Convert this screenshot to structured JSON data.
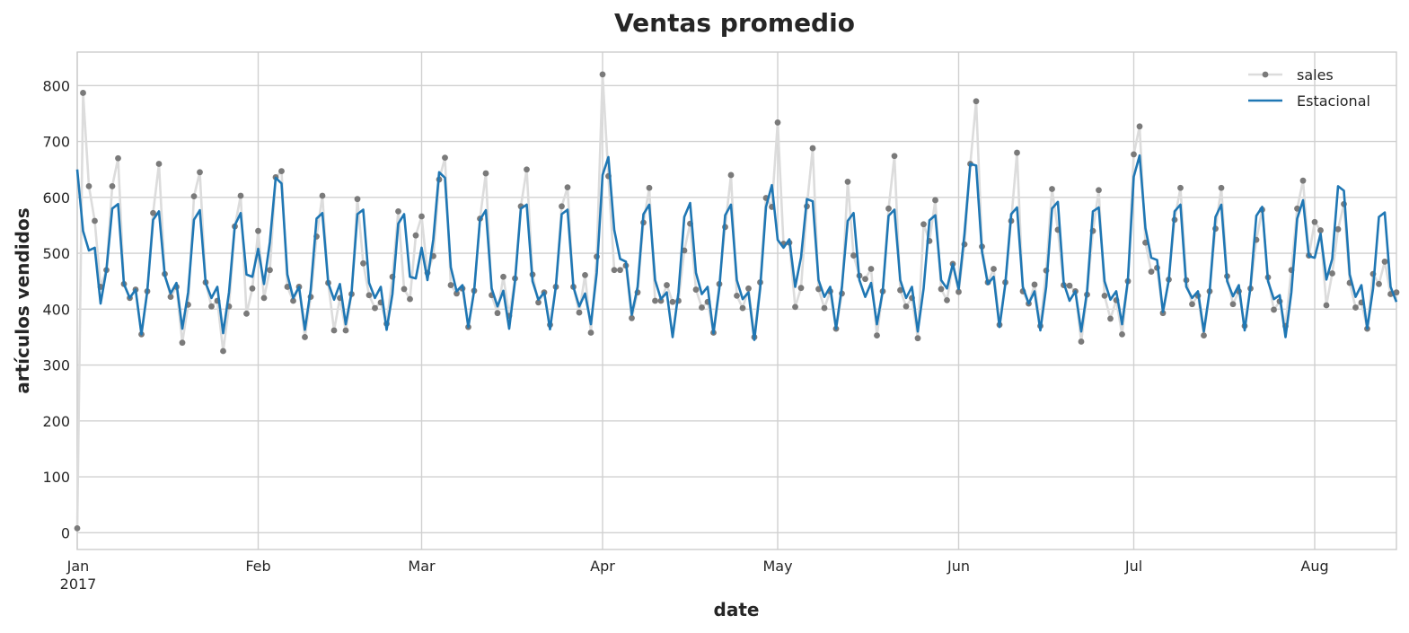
{
  "chart_data": {
    "type": "line",
    "title": "Ventas promedio",
    "xlabel": "date",
    "ylabel": "artículos vendidos",
    "x_start": "2017-01-01",
    "x_end": "2017-08-15",
    "ylim": [
      -30,
      860
    ],
    "yticks": [
      0,
      100,
      200,
      300,
      400,
      500,
      600,
      700,
      800
    ],
    "xticks": [
      {
        "date": "2017-01-01",
        "label": "Jan",
        "sublabel": "2017"
      },
      {
        "date": "2017-02-01",
        "label": "Feb"
      },
      {
        "date": "2017-03-01",
        "label": "Mar"
      },
      {
        "date": "2017-04-01",
        "label": "Apr"
      },
      {
        "date": "2017-05-01",
        "label": "May"
      },
      {
        "date": "2017-06-01",
        "label": "Jun"
      },
      {
        "date": "2017-07-01",
        "label": "Jul"
      },
      {
        "date": "2017-08-01",
        "label": "Aug"
      }
    ],
    "grid": true,
    "legend_position": "top-right",
    "colors": {
      "sales_line": "#dcdcdc",
      "sales_marker": "#7a7a7a",
      "seasonal": "#1f77b4"
    },
    "series": [
      {
        "name": "sales",
        "style": "line-with-markers",
        "values": [
          8,
          787,
          620,
          558,
          440,
          470,
          620,
          670,
          445,
          420,
          435,
          355,
          432,
          572,
          660,
          463,
          422,
          440,
          340,
          408,
          602,
          645,
          448,
          405,
          415,
          325,
          405,
          548,
          603,
          392,
          437,
          540,
          420,
          470,
          636,
          647,
          440,
          415,
          440,
          350,
          422,
          530,
          603,
          447,
          362,
          420,
          362,
          427,
          597,
          482,
          425,
          402,
          412,
          374,
          458,
          575,
          436,
          418,
          532,
          566,
          465,
          495,
          632,
          671,
          443,
          428,
          437,
          368,
          433,
          562,
          643,
          425,
          393,
          458,
          388,
          455,
          584,
          650,
          462,
          412,
          430,
          372,
          440,
          584,
          618,
          440,
          394,
          461,
          358,
          494,
          820,
          638,
          470,
          470,
          478,
          384,
          430,
          555,
          617,
          415,
          415,
          443,
          413,
          415,
          505,
          553,
          435,
          403,
          413,
          358,
          445,
          547,
          640,
          424,
          402,
          437,
          350,
          448,
          599,
          583,
          734,
          517,
          519,
          404,
          438,
          584,
          688,
          436,
          402,
          432,
          365,
          428,
          628,
          496,
          460,
          454,
          472,
          353,
          432,
          580,
          674,
          434,
          405,
          420,
          348,
          552,
          522,
          595,
          436,
          416,
          481,
          431,
          516,
          660,
          772,
          512,
          448,
          472,
          372,
          448,
          558,
          680,
          432,
          410,
          444,
          370,
          469,
          615,
          542,
          443,
          442,
          432,
          342,
          426,
          540,
          613,
          424,
          383,
          416,
          355,
          450,
          677,
          727,
          519,
          467,
          474,
          393,
          453,
          560,
          617,
          452,
          409,
          424,
          353,
          432,
          544,
          617,
          459,
          409,
          432,
          370,
          437,
          524,
          578,
          457,
          399,
          414,
          370,
          470,
          580,
          630,
          496,
          556,
          541,
          407,
          464,
          543,
          588,
          447,
          403,
          412,
          365,
          463,
          445,
          485,
          427,
          430
        ]
      },
      {
        "name": "Estacional",
        "style": "line",
        "values": [
          650,
          540,
          505,
          510,
          410,
          470,
          580,
          588,
          445,
          420,
          435,
          355,
          432,
          560,
          575,
          460,
          428,
          447,
          365,
          430,
          560,
          577,
          447,
          420,
          440,
          357,
          430,
          550,
          572,
          462,
          458,
          508,
          445,
          520,
          635,
          625,
          462,
          420,
          440,
          363,
          435,
          562,
          572,
          447,
          417,
          445,
          373,
          430,
          570,
          578,
          447,
          420,
          440,
          363,
          427,
          553,
          570,
          458,
          455,
          510,
          452,
          525,
          645,
          635,
          475,
          432,
          443,
          368,
          433,
          560,
          577,
          437,
          405,
          433,
          365,
          450,
          580,
          587,
          450,
          417,
          430,
          364,
          441,
          570,
          578,
          440,
          405,
          428,
          373,
          465,
          640,
          672,
          542,
          490,
          485,
          390,
          440,
          570,
          587,
          452,
          418,
          430,
          350,
          430,
          565,
          590,
          465,
          427,
          440,
          357,
          437,
          568,
          587,
          452,
          418,
          430,
          345,
          437,
          583,
          622,
          524,
          510,
          525,
          440,
          493,
          597,
          593,
          452,
          422,
          440,
          365,
          440,
          558,
          572,
          452,
          422,
          447,
          373,
          433,
          567,
          578,
          452,
          420,
          440,
          360,
          437,
          559,
          568,
          452,
          437,
          481,
          436,
          535,
          660,
          657,
          503,
          445,
          458,
          368,
          445,
          570,
          582,
          440,
          410,
          432,
          362,
          440,
          580,
          592,
          447,
          415,
          432,
          360,
          432,
          575,
          582,
          450,
          417,
          432,
          373,
          452,
          637,
          675,
          545,
          492,
          488,
          395,
          452,
          575,
          587,
          440,
          420,
          432,
          360,
          432,
          565,
          587,
          450,
          423,
          443,
          362,
          440,
          567,
          583,
          450,
          418,
          425,
          350,
          430,
          562,
          595,
          495,
          492,
          535,
          453,
          490,
          620,
          612,
          462,
          422,
          443,
          365,
          437,
          565,
          573,
          440,
          413
        ]
      }
    ]
  }
}
